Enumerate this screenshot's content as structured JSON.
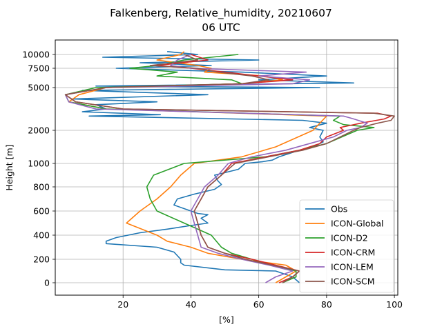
{
  "chart_data": {
    "type": "line",
    "title": "Falkenberg, Relative_humidity, 20210607",
    "subtitle": "06 UTC",
    "xlabel": "[%]",
    "ylabel": "Height [m]",
    "xlim": [
      0,
      101
    ],
    "xticks": [
      20,
      40,
      60,
      80,
      100
    ],
    "xtick_labels": [
      "20",
      "40",
      "60",
      "80",
      "100"
    ],
    "yticks": [
      0,
      200,
      400,
      600,
      800,
      1000,
      2000,
      5000,
      7500,
      10000
    ],
    "ytick_labels": [
      "0",
      "200",
      "400",
      "600",
      "800",
      "1000",
      "2000",
      "5000",
      "7500",
      "10000"
    ],
    "yscale": "nonlinear (log-like)",
    "grid": true,
    "legend_position": "lower-right",
    "series": [
      {
        "name": "Obs",
        "color": "#1f77b4",
        "points": [
          [
            72,
            0
          ],
          [
            70,
            50
          ],
          [
            65,
            100
          ],
          [
            50,
            110
          ],
          [
            38,
            150
          ],
          [
            37,
            170
          ],
          [
            37,
            200
          ],
          [
            35,
            260
          ],
          [
            30,
            300
          ],
          [
            15,
            330
          ],
          [
            15,
            350
          ],
          [
            18,
            380
          ],
          [
            25,
            420
          ],
          [
            33,
            450
          ],
          [
            40,
            480
          ],
          [
            45,
            500
          ],
          [
            43,
            540
          ],
          [
            45,
            570
          ],
          [
            42,
            580
          ],
          [
            40,
            600
          ],
          [
            35,
            650
          ],
          [
            36,
            700
          ],
          [
            41,
            740
          ],
          [
            47,
            780
          ],
          [
            49,
            820
          ],
          [
            48,
            850
          ],
          [
            47,
            900
          ],
          [
            54,
            950
          ],
          [
            56,
            1000
          ],
          [
            61,
            1050
          ],
          [
            64,
            1100
          ],
          [
            66,
            1200
          ],
          [
            69,
            1300
          ],
          [
            72,
            1400
          ],
          [
            76,
            1500
          ],
          [
            79,
            1650
          ],
          [
            78,
            1800
          ],
          [
            79,
            2000
          ],
          [
            75,
            2200
          ],
          [
            80,
            2500
          ],
          [
            73,
            2700
          ],
          [
            10,
            3000
          ],
          [
            31,
            3100
          ],
          [
            8,
            3300
          ],
          [
            15,
            3500
          ],
          [
            12,
            3800
          ],
          [
            30,
            4000
          ],
          [
            5,
            4200
          ],
          [
            45,
            4500
          ],
          [
            8,
            4800
          ],
          [
            78,
            5000
          ],
          [
            12,
            5200
          ],
          [
            88,
            5600
          ],
          [
            60,
            6000
          ],
          [
            80,
            6500
          ],
          [
            55,
            7000
          ],
          [
            18,
            7500
          ],
          [
            46,
            8000
          ],
          [
            25,
            8500
          ],
          [
            60,
            9000
          ],
          [
            14,
            9500
          ],
          [
            42,
            10000
          ],
          [
            33,
            10500
          ]
        ]
      },
      {
        "name": "ICON-Global",
        "color": "#ff7f0e",
        "points": [
          [
            65,
            0
          ],
          [
            68,
            50
          ],
          [
            71,
            100
          ],
          [
            68,
            150
          ],
          [
            55,
            200
          ],
          [
            45,
            250
          ],
          [
            40,
            300
          ],
          [
            33,
            350
          ],
          [
            30,
            400
          ],
          [
            21,
            500
          ],
          [
            25,
            600
          ],
          [
            30,
            700
          ],
          [
            34,
            800
          ],
          [
            37,
            900
          ],
          [
            41,
            1000
          ],
          [
            55,
            1200
          ],
          [
            65,
            1500
          ],
          [
            76,
            2000
          ],
          [
            78,
            2500
          ],
          [
            80,
            3000
          ],
          [
            15,
            3500
          ],
          [
            4,
            4000
          ],
          [
            7,
            4500
          ],
          [
            15,
            5000
          ],
          [
            55,
            5500
          ],
          [
            67,
            6000
          ],
          [
            62,
            6500
          ],
          [
            44,
            7000
          ],
          [
            46,
            7500
          ],
          [
            42,
            8000
          ],
          [
            30,
            9000
          ],
          [
            37,
            10000
          ],
          [
            38,
            10500
          ]
        ]
      },
      {
        "name": "ICON-D2",
        "color": "#2ca02c",
        "points": [
          [
            67,
            0
          ],
          [
            71,
            50
          ],
          [
            71,
            100
          ],
          [
            64,
            150
          ],
          [
            58,
            200
          ],
          [
            52,
            250
          ],
          [
            49,
            300
          ],
          [
            46,
            400
          ],
          [
            38,
            500
          ],
          [
            30,
            600
          ],
          [
            28,
            700
          ],
          [
            27,
            800
          ],
          [
            29,
            900
          ],
          [
            38,
            1000
          ],
          [
            62,
            1200
          ],
          [
            72,
            1400
          ],
          [
            80,
            1600
          ],
          [
            89,
            2000
          ],
          [
            94,
            2200
          ],
          [
            85,
            2400
          ],
          [
            82,
            2700
          ],
          [
            84,
            3000
          ],
          [
            15,
            3500
          ],
          [
            4,
            4000
          ],
          [
            3,
            4500
          ],
          [
            12,
            5000
          ],
          [
            55,
            5500
          ],
          [
            52,
            6000
          ],
          [
            30,
            6500
          ],
          [
            36,
            7000
          ],
          [
            22,
            7500
          ],
          [
            30,
            8000
          ],
          [
            38,
            9000
          ],
          [
            54,
            10000
          ]
        ]
      },
      {
        "name": "ICON-CRM",
        "color": "#d62728",
        "points": [
          [
            66,
            0
          ],
          [
            70,
            50
          ],
          [
            72,
            100
          ],
          [
            65,
            150
          ],
          [
            58,
            200
          ],
          [
            50,
            250
          ],
          [
            45,
            300
          ],
          [
            43,
            400
          ],
          [
            42,
            500
          ],
          [
            41,
            600
          ],
          [
            43,
            700
          ],
          [
            45,
            800
          ],
          [
            49,
            900
          ],
          [
            52,
            1000
          ],
          [
            62,
            1200
          ],
          [
            72,
            1400
          ],
          [
            78,
            1600
          ],
          [
            80,
            1800
          ],
          [
            85,
            2000
          ],
          [
            84,
            2200
          ],
          [
            90,
            2500
          ],
          [
            97,
            2800
          ],
          [
            99,
            3000
          ],
          [
            95,
            3200
          ],
          [
            20,
            3500
          ],
          [
            6,
            4000
          ],
          [
            3,
            4500
          ],
          [
            15,
            5000
          ],
          [
            55,
            5500
          ],
          [
            70,
            6000
          ],
          [
            60,
            6500
          ],
          [
            50,
            7000
          ],
          [
            40,
            7500
          ],
          [
            30,
            8000
          ],
          [
            45,
            9000
          ],
          [
            40,
            10000
          ]
        ]
      },
      {
        "name": "ICON-LEM",
        "color": "#9467bd",
        "points": [
          [
            62,
            0
          ],
          [
            65,
            50
          ],
          [
            70,
            100
          ],
          [
            63,
            150
          ],
          [
            55,
            200
          ],
          [
            48,
            250
          ],
          [
            43,
            300
          ],
          [
            42,
            400
          ],
          [
            41,
            500
          ],
          [
            40,
            600
          ],
          [
            42,
            700
          ],
          [
            44,
            800
          ],
          [
            48,
            900
          ],
          [
            51,
            1000
          ],
          [
            58,
            1200
          ],
          [
            68,
            1400
          ],
          [
            75,
            1600
          ],
          [
            82,
            1800
          ],
          [
            86,
            2000
          ],
          [
            90,
            2200
          ],
          [
            92,
            2500
          ],
          [
            88,
            2800
          ],
          [
            85,
            3000
          ],
          [
            12,
            3500
          ],
          [
            4,
            4000
          ],
          [
            3,
            4500
          ],
          [
            15,
            5000
          ],
          [
            70,
            5500
          ],
          [
            75,
            6000
          ],
          [
            60,
            6500
          ],
          [
            74,
            7000
          ],
          [
            40,
            7500
          ],
          [
            34,
            8000
          ],
          [
            36,
            9000
          ],
          [
            40,
            10000
          ]
        ]
      },
      {
        "name": "ICON-SCM",
        "color": "#8c564b",
        "points": [
          [
            67,
            0
          ],
          [
            70,
            50
          ],
          [
            72,
            100
          ],
          [
            64,
            150
          ],
          [
            56,
            200
          ],
          [
            50,
            250
          ],
          [
            45,
            300
          ],
          [
            43,
            400
          ],
          [
            42,
            500
          ],
          [
            41,
            600
          ],
          [
            43,
            700
          ],
          [
            45,
            800
          ],
          [
            49,
            900
          ],
          [
            53,
            1000
          ],
          [
            63,
            1200
          ],
          [
            73,
            1400
          ],
          [
            80,
            1600
          ],
          [
            84,
            1800
          ],
          [
            88,
            2000
          ],
          [
            90,
            2200
          ],
          [
            95,
            2500
          ],
          [
            99,
            2700
          ],
          [
            100,
            3000
          ],
          [
            94,
            3200
          ],
          [
            20,
            3500
          ],
          [
            6,
            4000
          ],
          [
            3,
            4500
          ],
          [
            15,
            5000
          ],
          [
            55,
            5500
          ],
          [
            63,
            6000
          ],
          [
            58,
            6500
          ],
          [
            48,
            7000
          ],
          [
            42,
            7500
          ],
          [
            28,
            8000
          ],
          [
            42,
            9000
          ],
          [
            38,
            10000
          ]
        ]
      }
    ]
  }
}
